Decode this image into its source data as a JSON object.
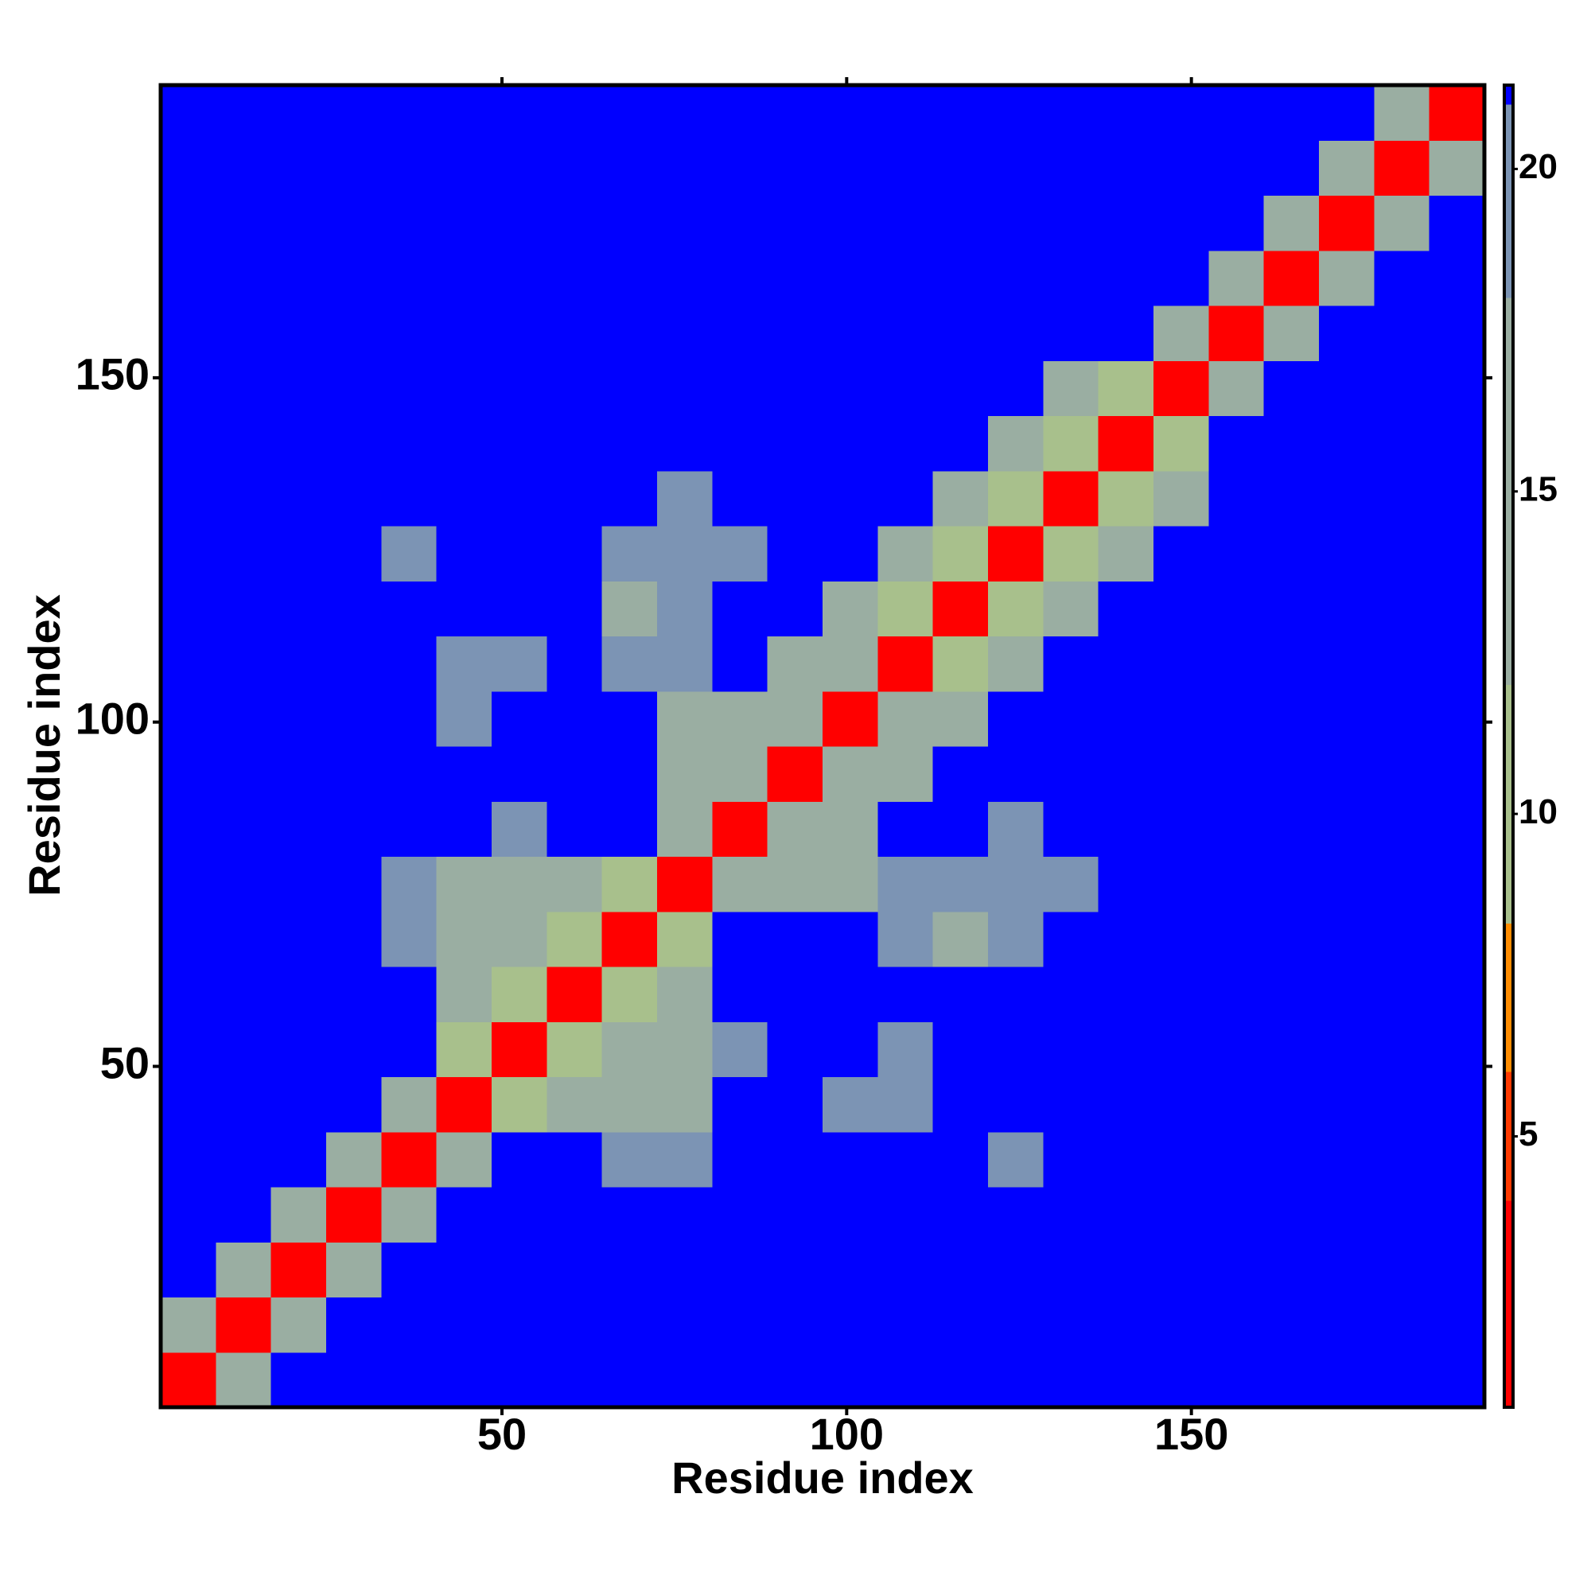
{
  "chart_data": {
    "type": "heatmap",
    "xlabel": "Residue index",
    "ylabel": "Residue index",
    "x": [
      4.5,
      12.5,
      20.5,
      28.5,
      36.5,
      44.5,
      52.5,
      60.5,
      68.5,
      76.5,
      84.5,
      92.5,
      100.5,
      108.5,
      116.5,
      124.5,
      132.5,
      140.5,
      148.5,
      156.5,
      164.5,
      172.5,
      180.5,
      188.5
    ],
    "y": [
      4.5,
      12.5,
      20.5,
      28.5,
      36.5,
      44.5,
      52.5,
      60.5,
      68.5,
      76.5,
      84.5,
      92.5,
      100.5,
      108.5,
      116.5,
      124.5,
      132.5,
      140.5,
      148.5,
      156.5,
      164.5,
      172.5,
      180.5,
      188.5
    ],
    "z": [
      [
        3,
        13,
        21.3,
        21.3,
        21.3,
        21.3,
        21.3,
        21.3,
        21.3,
        21.3,
        21.3,
        21.3,
        21.3,
        21.3,
        21.3,
        21.3,
        21.3,
        21.3,
        21.3,
        21.3,
        21.3,
        21.3,
        21.3,
        21.3
      ],
      [
        13,
        3,
        13,
        21.3,
        21.3,
        21.3,
        21.3,
        21.3,
        21.3,
        21.3,
        21.3,
        21.3,
        21.3,
        21.3,
        21.3,
        21.3,
        21.3,
        21.3,
        21.3,
        21.3,
        21.3,
        21.3,
        21.3,
        21.3
      ],
      [
        21.3,
        13,
        3,
        13,
        21.3,
        21.3,
        21.3,
        21.3,
        21.3,
        21.3,
        21.3,
        21.3,
        21.3,
        21.3,
        21.3,
        21.3,
        21.3,
        21.3,
        21.3,
        21.3,
        21.3,
        21.3,
        21.3,
        21.3
      ],
      [
        21.3,
        21.3,
        13,
        3,
        13,
        21.3,
        21.3,
        21.3,
        21.3,
        21.3,
        21.3,
        21.3,
        21.3,
        21.3,
        21.3,
        21.3,
        21.3,
        21.3,
        21.3,
        21.3,
        21.3,
        21.3,
        21.3,
        21.3
      ],
      [
        21.3,
        21.3,
        21.3,
        13,
        3,
        13,
        21.3,
        21.3,
        18,
        19,
        21.3,
        21.3,
        21.3,
        21.3,
        21.3,
        19,
        21.3,
        21.3,
        21.3,
        21.3,
        21.3,
        21.3,
        21.3,
        21.3
      ],
      [
        21.3,
        21.3,
        21.3,
        21.3,
        13,
        3,
        10,
        15,
        16,
        17,
        21.3,
        21.3,
        19,
        18,
        21.3,
        21.3,
        21.3,
        21.3,
        21.3,
        21.3,
        21.3,
        21.3,
        21.3,
        21.3
      ],
      [
        21.3,
        21.3,
        21.3,
        21.3,
        21.3,
        10,
        3,
        10,
        15,
        16,
        18,
        21.3,
        21.3,
        19,
        21.3,
        21.3,
        21.3,
        21.3,
        21.3,
        21.3,
        21.3,
        21.3,
        21.3,
        21.3
      ],
      [
        21.3,
        21.3,
        21.3,
        21.3,
        21.3,
        15,
        10,
        3,
        10,
        15,
        21.3,
        21.3,
        21.3,
        21.3,
        21.3,
        21.3,
        21.3,
        21.3,
        21.3,
        21.3,
        21.3,
        21.3,
        21.3,
        21.3
      ],
      [
        21.3,
        21.3,
        21.3,
        21.3,
        18,
        16,
        15,
        10,
        3,
        10,
        21.3,
        21.3,
        21.3,
        18,
        17,
        18,
        21.3,
        21.3,
        21.3,
        21.3,
        21.3,
        21.3,
        21.3,
        21.3
      ],
      [
        21.3,
        21.3,
        21.3,
        21.3,
        19,
        17,
        16,
        15,
        10,
        3,
        13,
        17,
        17,
        18,
        18,
        19,
        19,
        21.3,
        21.3,
        21.3,
        21.3,
        21.3,
        21.3,
        21.3
      ],
      [
        21.3,
        21.3,
        21.3,
        21.3,
        21.3,
        21.3,
        18,
        21.3,
        21.3,
        13,
        3,
        13,
        17,
        21.3,
        21.3,
        19,
        21.3,
        21.3,
        21.3,
        21.3,
        21.3,
        21.3,
        21.3,
        21.3
      ],
      [
        21.3,
        21.3,
        21.3,
        21.3,
        21.3,
        21.3,
        21.3,
        21.3,
        21.3,
        17,
        13,
        3,
        13,
        17,
        21.3,
        21.3,
        21.3,
        21.3,
        21.3,
        21.3,
        21.3,
        21.3,
        21.3,
        21.3
      ],
      [
        21.3,
        21.3,
        21.3,
        21.3,
        21.3,
        19,
        21.3,
        21.3,
        21.3,
        17,
        17,
        13,
        3,
        13,
        17,
        21.3,
        21.3,
        21.3,
        21.3,
        21.3,
        21.3,
        21.3,
        21.3,
        21.3
      ],
      [
        21.3,
        21.3,
        21.3,
        21.3,
        21.3,
        18,
        19,
        21.3,
        18,
        18,
        21.3,
        17,
        13,
        3,
        10,
        16,
        21.3,
        21.3,
        21.3,
        21.3,
        21.3,
        21.3,
        21.3,
        21.3
      ],
      [
        21.3,
        21.3,
        21.3,
        21.3,
        21.3,
        21.3,
        21.3,
        21.3,
        17,
        18,
        21.3,
        21.3,
        17,
        10,
        3,
        10,
        15,
        21.3,
        21.3,
        21.3,
        21.3,
        21.3,
        21.3,
        21.3
      ],
      [
        21.3,
        21.3,
        21.3,
        21.3,
        19,
        21.3,
        21.3,
        21.3,
        18,
        19,
        19,
        21.3,
        21.3,
        16,
        10,
        3,
        10,
        15,
        21.3,
        21.3,
        21.3,
        21.3,
        21.3,
        21.3
      ],
      [
        21.3,
        21.3,
        21.3,
        21.3,
        21.3,
        21.3,
        21.3,
        21.3,
        21.3,
        19,
        21.3,
        21.3,
        21.3,
        21.3,
        15,
        10,
        3,
        10,
        15,
        21.3,
        21.3,
        21.3,
        21.3,
        21.3
      ],
      [
        21.3,
        21.3,
        21.3,
        21.3,
        21.3,
        21.3,
        21.3,
        21.3,
        21.3,
        21.3,
        21.3,
        21.3,
        21.3,
        21.3,
        21.3,
        15,
        10,
        3,
        10,
        21.3,
        21.3,
        21.3,
        21.3,
        21.3
      ],
      [
        21.3,
        21.3,
        21.3,
        21.3,
        21.3,
        21.3,
        21.3,
        21.3,
        21.3,
        21.3,
        21.3,
        21.3,
        21.3,
        21.3,
        21.3,
        21.3,
        15,
        10,
        3,
        13,
        21.3,
        21.3,
        21.3,
        21.3
      ],
      [
        21.3,
        21.3,
        21.3,
        21.3,
        21.3,
        21.3,
        21.3,
        21.3,
        21.3,
        21.3,
        21.3,
        21.3,
        21.3,
        21.3,
        21.3,
        21.3,
        21.3,
        21.3,
        13,
        3,
        13,
        21.3,
        21.3,
        21.3
      ],
      [
        21.3,
        21.3,
        21.3,
        21.3,
        21.3,
        21.3,
        21.3,
        21.3,
        21.3,
        21.3,
        21.3,
        21.3,
        21.3,
        21.3,
        21.3,
        21.3,
        21.3,
        21.3,
        21.3,
        13,
        3,
        13,
        21.3,
        21.3
      ],
      [
        21.3,
        21.3,
        21.3,
        21.3,
        21.3,
        21.3,
        21.3,
        21.3,
        21.3,
        21.3,
        21.3,
        21.3,
        21.3,
        21.3,
        21.3,
        21.3,
        21.3,
        21.3,
        21.3,
        21.3,
        13,
        3,
        13,
        21.3
      ],
      [
        21.3,
        21.3,
        21.3,
        21.3,
        21.3,
        21.3,
        21.3,
        21.3,
        21.3,
        21.3,
        21.3,
        21.3,
        21.3,
        21.3,
        21.3,
        21.3,
        21.3,
        21.3,
        21.3,
        21.3,
        21.3,
        13,
        3,
        13
      ],
      [
        21.3,
        21.3,
        21.3,
        21.3,
        21.3,
        21.3,
        21.3,
        21.3,
        21.3,
        21.3,
        21.3,
        21.3,
        21.3,
        21.3,
        21.3,
        21.3,
        21.3,
        21.3,
        21.3,
        21.3,
        21.3,
        21.3,
        13,
        3
      ]
    ],
    "xlim": [
      0.5,
      192.5
    ],
    "ylim": [
      0.5,
      192.5
    ],
    "xticks": [
      50,
      100,
      150
    ],
    "yticks": [
      50,
      100,
      150
    ],
    "zlim": [
      0.8,
      21.3
    ],
    "zticks": [
      5,
      10,
      15,
      20
    ],
    "colorscale": [
      {
        "value": 0.8,
        "color": "#ff0000"
      },
      {
        "value": 4,
        "color": "#ff3a00"
      },
      {
        "value": 6,
        "color": "#ff8c00"
      },
      {
        "value": 8.3,
        "color": "#a8c08c"
      },
      {
        "value": 12,
        "color": "#9aaea2"
      },
      {
        "value": 18,
        "color": "#7c94b4"
      },
      {
        "value": 21,
        "color": "#0000ff"
      }
    ]
  }
}
